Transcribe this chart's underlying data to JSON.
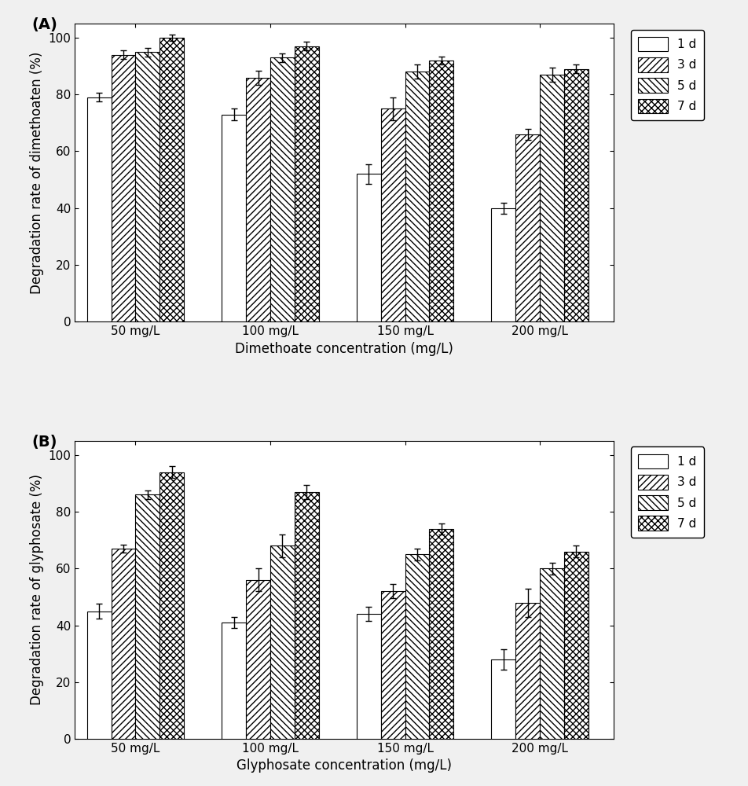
{
  "panel_A": {
    "title": "(A)",
    "ylabel": "Degradation rate of dimethoaten (%)",
    "xlabel": "Dimethoate concentration (mg/L)",
    "categories": [
      "50 mg/L",
      "100 mg/L",
      "150 mg/L",
      "200 mg/L"
    ],
    "series": {
      "1 d": [
        79,
        73,
        52,
        40
      ],
      "3 d": [
        94,
        86,
        75,
        66
      ],
      "5 d": [
        95,
        93,
        88,
        87
      ],
      "7 d": [
        100,
        97,
        92,
        89
      ]
    },
    "errors": {
      "1 d": [
        1.5,
        2.0,
        3.5,
        2.0
      ],
      "3 d": [
        1.5,
        2.5,
        4.0,
        2.0
      ],
      "5 d": [
        1.5,
        1.5,
        2.5,
        2.5
      ],
      "7 d": [
        1.0,
        1.5,
        1.5,
        1.5
      ]
    },
    "ylim": [
      0,
      105
    ],
    "yticks": [
      0,
      20,
      40,
      60,
      80,
      100
    ]
  },
  "panel_B": {
    "title": "(B)",
    "ylabel": "Degradation rate of glyphosate (%)",
    "xlabel": "Glyphosate concentration (mg/L)",
    "categories": [
      "50 mg/L",
      "100 mg/L",
      "150 mg/L",
      "200 mg/L"
    ],
    "series": {
      "1 d": [
        45,
        41,
        44,
        28
      ],
      "3 d": [
        67,
        56,
        52,
        48
      ],
      "5 d": [
        86,
        68,
        65,
        60
      ],
      "7 d": [
        94,
        87,
        74,
        66
      ]
    },
    "errors": {
      "1 d": [
        2.5,
        2.0,
        2.5,
        3.5
      ],
      "3 d": [
        1.5,
        4.0,
        2.5,
        5.0
      ],
      "5 d": [
        1.5,
        4.0,
        2.0,
        2.0
      ],
      "7 d": [
        2.0,
        2.5,
        2.0,
        2.0
      ]
    },
    "ylim": [
      0,
      105
    ],
    "yticks": [
      0,
      20,
      40,
      60,
      80,
      100
    ]
  },
  "legend_labels": [
    "1 d",
    "3 d",
    "5 d",
    "7 d"
  ],
  "bar_width": 0.18,
  "bar_colors": [
    "white",
    "white",
    "white",
    "white"
  ],
  "bar_edgecolor": "black",
  "hatch_patterns": [
    "",
    "////",
    "\\\\\\\\",
    "xxxx"
  ],
  "background_color": "#f0f0f0",
  "axis_bg_color": "white",
  "errorbar_color": "black",
  "errorbar_capsize": 3,
  "font_size": 11,
  "label_font_size": 12
}
